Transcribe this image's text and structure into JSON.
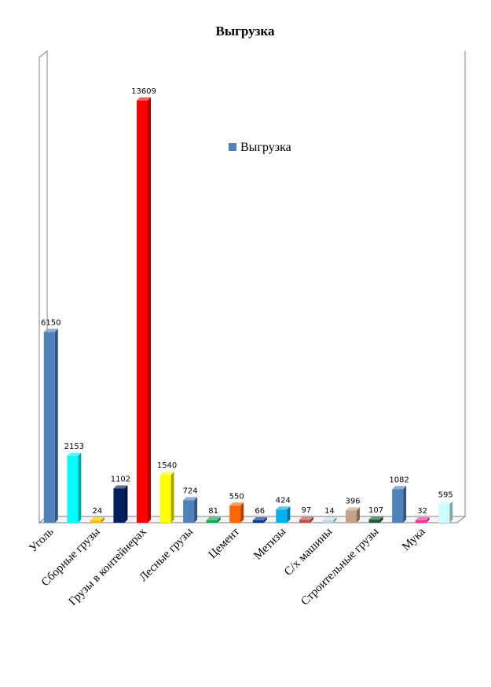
{
  "chart_data": {
    "type": "bar",
    "title": "Выгрузка",
    "legend": {
      "label": "Выгрузка",
      "color": "#4f81bd",
      "position": "top-right"
    },
    "ylim": [
      0,
      15000
    ],
    "grid": false,
    "categories_labeled": [
      "Уголь",
      "Сборные грузы",
      "Грузы в контейнерах",
      "Лесные грузы",
      "Цемент",
      "Метизы",
      "С/х машины",
      "Строительные грузы",
      "Мука"
    ],
    "series": [
      {
        "values": [
          6150,
          2153,
          24,
          1102,
          13609,
          1540,
          724,
          81,
          550,
          66,
          424,
          97,
          14,
          396,
          107,
          1082,
          32,
          595
        ],
        "colors": [
          "#4f81bd",
          "#00ffff",
          "#ffc000",
          "#002060",
          "#ff0000",
          "#ffff00",
          "#4f81bd",
          "#00b050",
          "#ff6600",
          "#003399",
          "#00b0f0",
          "#c0504d",
          "#b7dee8",
          "#c4a484",
          "#1e5c3a",
          "#4f81bd",
          "#ff3399",
          "#ccffff"
        ]
      }
    ]
  }
}
